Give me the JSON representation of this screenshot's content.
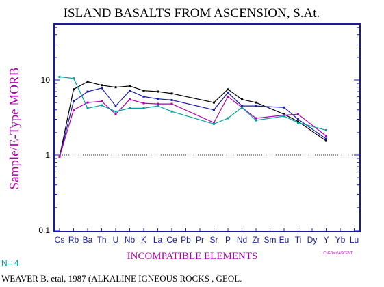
{
  "chart_data": {
    "type": "line",
    "title": "ISLAND BASALTS FROM ASCENSION, S.At.",
    "xlabel": "INCOMPATIBLE ELEMENTS",
    "ylabel": "Sample/E-Type MORB",
    "yscale": "log",
    "ylim": [
      0.1,
      50
    ],
    "yticks": [
      {
        "value": 0.1,
        "label": "0.1"
      },
      {
        "value": 1,
        "label": "1"
      },
      {
        "value": 10,
        "label": "10"
      }
    ],
    "reference_line": 1,
    "categories": [
      "Cs",
      "Rb",
      "Ba",
      "Th",
      "U",
      "Nb",
      "K",
      "La",
      "Ce",
      "Pb",
      "Pr",
      "Sr",
      "P",
      "Nd",
      "Zr",
      "Sm",
      "Eu",
      "Ti",
      "Dy",
      "Y",
      "Yb",
      "Lu"
    ],
    "series": [
      {
        "color": "#000000",
        "values": [
          0.95,
          7.5,
          9.5,
          8.5,
          8.0,
          8.3,
          7.2,
          7.0,
          6.6,
          null,
          null,
          5.0,
          7.5,
          5.5,
          5.0,
          null,
          3.5,
          2.8,
          null,
          1.55,
          null,
          null
        ]
      },
      {
        "color": "#1a1ab0",
        "values": [
          0.95,
          5.2,
          7.0,
          7.8,
          4.5,
          7.2,
          6.0,
          5.6,
          5.4,
          null,
          null,
          4.0,
          6.8,
          4.5,
          4.5,
          null,
          4.3,
          3.0,
          null,
          1.65,
          null,
          null
        ]
      },
      {
        "color": "#b000b0",
        "values": [
          0.95,
          4.0,
          5.0,
          5.2,
          3.5,
          5.5,
          4.9,
          4.8,
          4.8,
          null,
          null,
          2.7,
          6.0,
          4.3,
          3.1,
          null,
          3.4,
          3.5,
          null,
          1.8,
          null,
          null
        ]
      },
      {
        "color": "#00a0a0",
        "values": [
          11.0,
          10.5,
          4.2,
          4.6,
          3.8,
          4.2,
          4.2,
          4.5,
          3.8,
          null,
          null,
          2.6,
          3.1,
          4.3,
          2.9,
          null,
          3.3,
          2.7,
          null,
          2.15,
          null,
          null
        ]
      }
    ]
  },
  "footer": {
    "n_label": "N= 4",
    "source": "WEAVER B. etal, 1987 (ALKALINE IGNEOUS ROCKS , GEOL.",
    "file_path": "← C:\\GData\\ASCENT"
  }
}
